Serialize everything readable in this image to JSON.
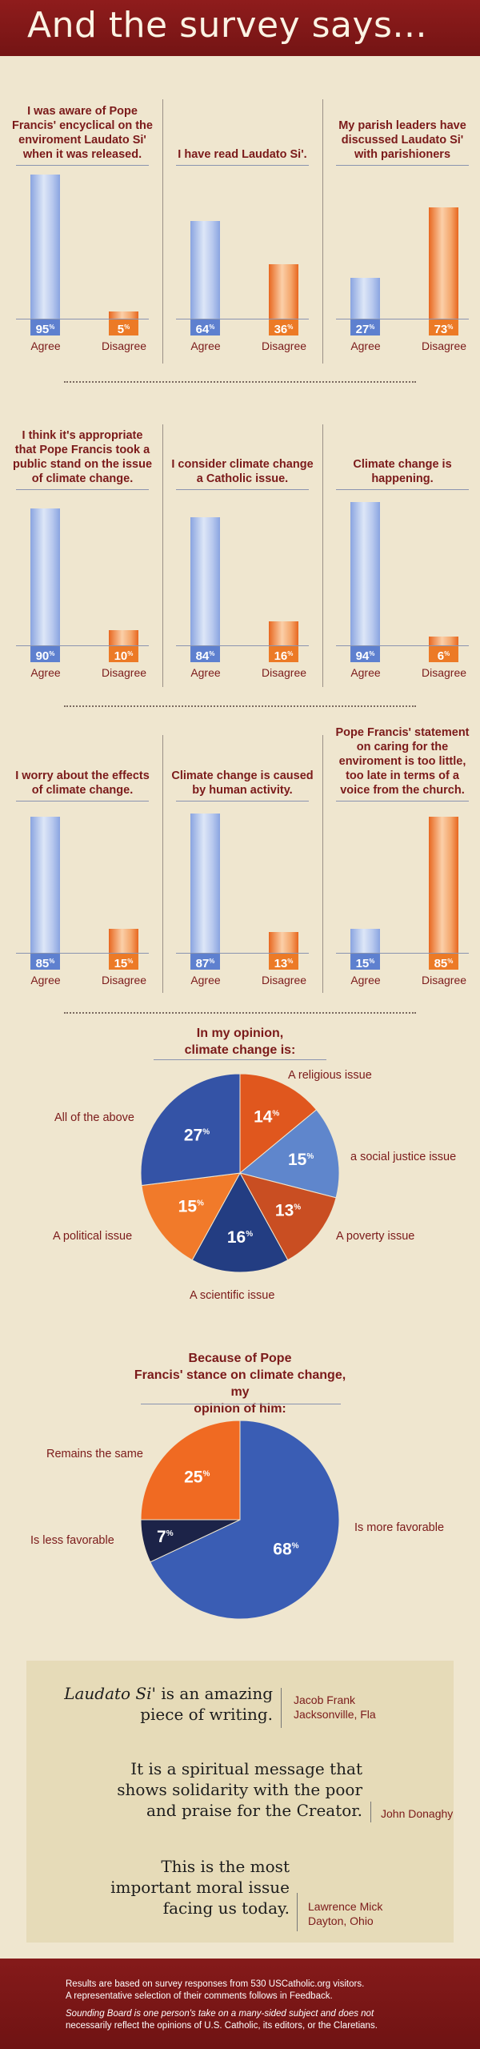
{
  "header": {
    "title": "And the survey says..."
  },
  "bar_labels": {
    "agree": "Agree",
    "disagree": "Disagree",
    "percent_suffix": "%"
  },
  "chart_data": [
    {
      "type": "bar",
      "title": "I was aware of Pope Francis' encyclical on the enviroment Laudato Si' when it was released.",
      "categories": [
        "Agree",
        "Disagree"
      ],
      "values": [
        95,
        5
      ],
      "unit": "%",
      "ylim": [
        0,
        100
      ]
    },
    {
      "type": "bar",
      "title": "I have read Laudato Si'.",
      "categories": [
        "Agree",
        "Disagree"
      ],
      "values": [
        64,
        36
      ],
      "unit": "%",
      "ylim": [
        0,
        100
      ]
    },
    {
      "type": "bar",
      "title": "My parish leaders have discussed Laudato Si' with parishioners",
      "categories": [
        "Agree",
        "Disagree"
      ],
      "values": [
        27,
        73
      ],
      "unit": "%",
      "ylim": [
        0,
        100
      ]
    },
    {
      "type": "bar",
      "title": "I think it's appropriate that Pope Francis took a public stand on the issue of climate change.",
      "categories": [
        "Agree",
        "Disagree"
      ],
      "values": [
        90,
        10
      ],
      "unit": "%",
      "ylim": [
        0,
        100
      ]
    },
    {
      "type": "bar",
      "title": "I consider climate change a Catholic issue.",
      "categories": [
        "Agree",
        "Disagree"
      ],
      "values": [
        84,
        16
      ],
      "unit": "%",
      "ylim": [
        0,
        100
      ]
    },
    {
      "type": "bar",
      "title": "Climate change is happening.",
      "categories": [
        "Agree",
        "Disagree"
      ],
      "values": [
        94,
        6
      ],
      "unit": "%",
      "ylim": [
        0,
        100
      ]
    },
    {
      "type": "bar",
      "title": "I worry about the effects of climate change.",
      "categories": [
        "Agree",
        "Disagree"
      ],
      "values": [
        85,
        15
      ],
      "unit": "%",
      "ylim": [
        0,
        100
      ]
    },
    {
      "type": "bar",
      "title": "Climate change is caused by human activity.",
      "categories": [
        "Agree",
        "Disagree"
      ],
      "values": [
        87,
        13
      ],
      "unit": "%",
      "ylim": [
        0,
        100
      ]
    },
    {
      "type": "bar",
      "title": "Pope Francis' statement on caring for the enviroment is too little, too late in terms of a voice from the church.",
      "categories": [
        "Agree",
        "Disagree"
      ],
      "values": [
        15,
        85
      ],
      "unit": "%",
      "ylim": [
        0,
        100
      ]
    },
    {
      "type": "pie",
      "title": "In my opinion, climate change is:",
      "unit": "%",
      "slices": [
        {
          "label": "A religious issue",
          "value": 14,
          "color": "#e0571e"
        },
        {
          "label": "a social justice issue",
          "value": 15,
          "color": "#5f86cc"
        },
        {
          "label": "A poverty issue",
          "value": 13,
          "color": "#c94e22"
        },
        {
          "label": "A scientific issue",
          "value": 16,
          "color": "#233d82"
        },
        {
          "label": "A political issue",
          "value": 15,
          "color": "#f17a2a"
        },
        {
          "label": "All of the above",
          "value": 27,
          "color": "#3453a6"
        }
      ]
    },
    {
      "type": "pie",
      "title": "Because of Pope Francis' stance on climate change, my opinion of him:",
      "unit": "%",
      "slices": [
        {
          "label": "Is more favorable",
          "value": 68,
          "color": "#3a5db4"
        },
        {
          "label": "Is less favorable",
          "value": 7,
          "color": "#1c2348"
        },
        {
          "label": "Remains the same",
          "value": 25,
          "color": "#f06a22"
        }
      ]
    }
  ],
  "quotes": [
    {
      "text_lines": [
        "Laudato Si' is an amazing",
        "piece of writing."
      ],
      "author": "Jacob Frank",
      "location": "Jacksonville, Fla"
    },
    {
      "text_lines": [
        "It is a spiritual message that",
        "shows solidarity with the poor",
        "and praise for the Creator."
      ],
      "author": "John Donaghy",
      "location": ""
    },
    {
      "text_lines": [
        "This is the most",
        "important moral issue",
        "facing us today."
      ],
      "author": "Lawrence Mick",
      "location": "Dayton, Ohio"
    }
  ],
  "footer": {
    "line1": "Results are based on survey responses from 530 USCatholic.org visitors.",
    "line2": "A representative selection of their comments follows in Feedback.",
    "line3": "Sounding Board is one person's take on a many-sided subject and does not",
    "line4": "necessarily reflect the opinions of U.S. Catholic, its editors, or the Claretians."
  },
  "colors": {
    "brand": "#7b1a1a",
    "agree": "#5e80cf",
    "disagree": "#ec7a26",
    "background": "#efe6cf"
  }
}
